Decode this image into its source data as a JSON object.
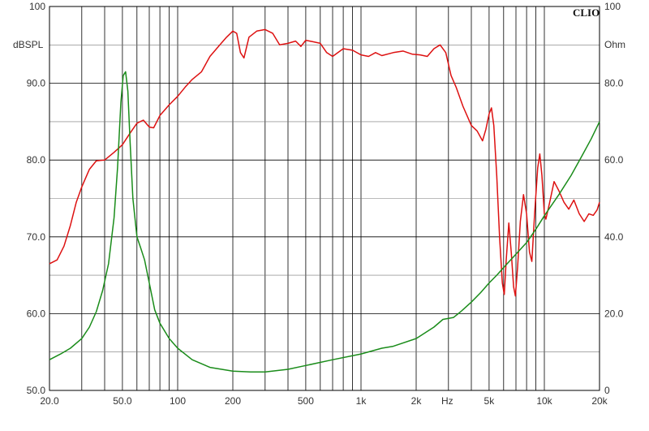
{
  "chart_data": {
    "type": "line",
    "brand": "CLIO",
    "x_scale": "log",
    "xlim": [
      20,
      20000
    ],
    "ylim_left": [
      50,
      100
    ],
    "ylim_right": [
      0,
      100
    ],
    "left_unit": "dBSPL",
    "right_unit": "Ohm",
    "x_unit": "Hz",
    "grid": true,
    "x_ticks": [
      {
        "value": 20,
        "label": "20.0"
      },
      {
        "value": 50,
        "label": "50.0"
      },
      {
        "value": 100,
        "label": "100"
      },
      {
        "value": 200,
        "label": "200"
      },
      {
        "value": 500,
        "label": "500"
      },
      {
        "value": 1000,
        "label": "1k"
      },
      {
        "value": 2000,
        "label": "2k"
      },
      {
        "value": 5000,
        "label": "5k"
      },
      {
        "value": 10000,
        "label": "10k"
      },
      {
        "value": 20000,
        "label": "20k"
      }
    ],
    "left_ticks": [
      {
        "value": 100,
        "label": "100"
      },
      {
        "value": 90,
        "label": "90.0"
      },
      {
        "value": 80,
        "label": "80.0"
      },
      {
        "value": 70,
        "label": "70.0"
      },
      {
        "value": 60,
        "label": "60.0"
      },
      {
        "value": 50,
        "label": "50.0"
      }
    ],
    "right_ticks": [
      {
        "value": 100,
        "label": "100"
      },
      {
        "value": 80,
        "label": "80.0"
      },
      {
        "value": 60,
        "label": "60.0"
      },
      {
        "value": 40,
        "label": "40.0"
      },
      {
        "value": 20,
        "label": "20.0"
      },
      {
        "value": 0,
        "label": "0"
      }
    ],
    "series": [
      {
        "axis": "left",
        "color": "#dd1111",
        "points": [
          [
            20,
            66.5
          ],
          [
            22,
            67
          ],
          [
            24,
            68.8
          ],
          [
            26,
            71.5
          ],
          [
            28,
            74.5
          ],
          [
            30,
            76.5
          ],
          [
            33,
            78.8
          ],
          [
            36,
            79.9
          ],
          [
            40,
            80
          ],
          [
            45,
            81
          ],
          [
            50,
            82
          ],
          [
            55,
            83.5
          ],
          [
            60,
            84.8
          ],
          [
            65,
            85.2
          ],
          [
            70,
            84.3
          ],
          [
            74,
            84.2
          ],
          [
            80,
            85.8
          ],
          [
            90,
            87.2
          ],
          [
            100,
            88.3
          ],
          [
            110,
            89.5
          ],
          [
            120,
            90.5
          ],
          [
            135,
            91.5
          ],
          [
            150,
            93.5
          ],
          [
            170,
            95
          ],
          [
            185,
            96
          ],
          [
            200,
            96.8
          ],
          [
            210,
            96.5
          ],
          [
            220,
            94
          ],
          [
            230,
            93.3
          ],
          [
            245,
            96
          ],
          [
            270,
            96.8
          ],
          [
            300,
            97
          ],
          [
            330,
            96.5
          ],
          [
            360,
            95
          ],
          [
            400,
            95.2
          ],
          [
            440,
            95.5
          ],
          [
            470,
            94.8
          ],
          [
            500,
            95.6
          ],
          [
            550,
            95.4
          ],
          [
            600,
            95.2
          ],
          [
            650,
            94
          ],
          [
            700,
            93.5
          ],
          [
            800,
            94.5
          ],
          [
            900,
            94.3
          ],
          [
            1000,
            93.7
          ],
          [
            1100,
            93.5
          ],
          [
            1200,
            94
          ],
          [
            1300,
            93.6
          ],
          [
            1500,
            94
          ],
          [
            1700,
            94.2
          ],
          [
            1900,
            93.8
          ],
          [
            2100,
            93.7
          ],
          [
            2300,
            93.5
          ],
          [
            2500,
            94.5
          ],
          [
            2700,
            95
          ],
          [
            2900,
            94
          ],
          [
            3100,
            91
          ],
          [
            3300,
            89.5
          ],
          [
            3600,
            87
          ],
          [
            4000,
            84.5
          ],
          [
            4300,
            83.8
          ],
          [
            4600,
            82.5
          ],
          [
            4800,
            84
          ],
          [
            5000,
            86
          ],
          [
            5150,
            86.8
          ],
          [
            5300,
            84.5
          ],
          [
            5500,
            78
          ],
          [
            5700,
            70
          ],
          [
            5900,
            64
          ],
          [
            6050,
            62.5
          ],
          [
            6200,
            67
          ],
          [
            6400,
            71.8
          ],
          [
            6600,
            68
          ],
          [
            6800,
            63.5
          ],
          [
            6950,
            62.3
          ],
          [
            7150,
            66
          ],
          [
            7400,
            72
          ],
          [
            7700,
            75.5
          ],
          [
            8000,
            73
          ],
          [
            8300,
            68
          ],
          [
            8550,
            66.8
          ],
          [
            8850,
            73
          ],
          [
            9200,
            79
          ],
          [
            9450,
            80.8
          ],
          [
            9700,
            78
          ],
          [
            10000,
            73
          ],
          [
            10200,
            72.3
          ],
          [
            10700,
            74.5
          ],
          [
            11300,
            77.2
          ],
          [
            12000,
            76
          ],
          [
            12800,
            74.5
          ],
          [
            13600,
            73.6
          ],
          [
            14500,
            74.8
          ],
          [
            15500,
            73
          ],
          [
            16500,
            72
          ],
          [
            17500,
            73
          ],
          [
            18500,
            72.8
          ],
          [
            19400,
            73.5
          ],
          [
            20000,
            74.5
          ]
        ]
      },
      {
        "axis": "right",
        "color": "#1a8c1a",
        "points": [
          [
            20,
            8
          ],
          [
            23,
            9.5
          ],
          [
            26,
            11
          ],
          [
            30,
            13.5
          ],
          [
            33,
            16.5
          ],
          [
            36,
            20.5
          ],
          [
            39,
            26
          ],
          [
            42,
            33
          ],
          [
            45,
            45
          ],
          [
            47,
            58
          ],
          [
            49,
            75
          ],
          [
            50.5,
            82
          ],
          [
            52,
            83
          ],
          [
            53.5,
            78
          ],
          [
            55,
            65
          ],
          [
            57,
            50
          ],
          [
            60,
            40
          ],
          [
            63,
            37
          ],
          [
            66,
            34
          ],
          [
            70,
            28
          ],
          [
            75,
            21
          ],
          [
            80,
            17.5
          ],
          [
            90,
            13.5
          ],
          [
            100,
            11
          ],
          [
            120,
            8
          ],
          [
            150,
            6
          ],
          [
            200,
            5
          ],
          [
            250,
            4.8
          ],
          [
            300,
            4.8
          ],
          [
            400,
            5.5
          ],
          [
            500,
            6.5
          ],
          [
            700,
            8
          ],
          [
            1000,
            9.5
          ],
          [
            1300,
            11
          ],
          [
            1500,
            11.5
          ],
          [
            2000,
            13.5
          ],
          [
            2500,
            16.5
          ],
          [
            2800,
            18.5
          ],
          [
            3200,
            19
          ],
          [
            3500,
            20.5
          ],
          [
            4000,
            23
          ],
          [
            4500,
            25.5
          ],
          [
            5000,
            28
          ],
          [
            5500,
            30
          ],
          [
            6000,
            32
          ],
          [
            7000,
            35.5
          ],
          [
            8000,
            38.5
          ],
          [
            9000,
            42
          ],
          [
            10000,
            45.5
          ],
          [
            12000,
            51
          ],
          [
            14000,
            56
          ],
          [
            16000,
            61
          ],
          [
            18000,
            65.5
          ],
          [
            20000,
            70
          ]
        ]
      }
    ]
  }
}
